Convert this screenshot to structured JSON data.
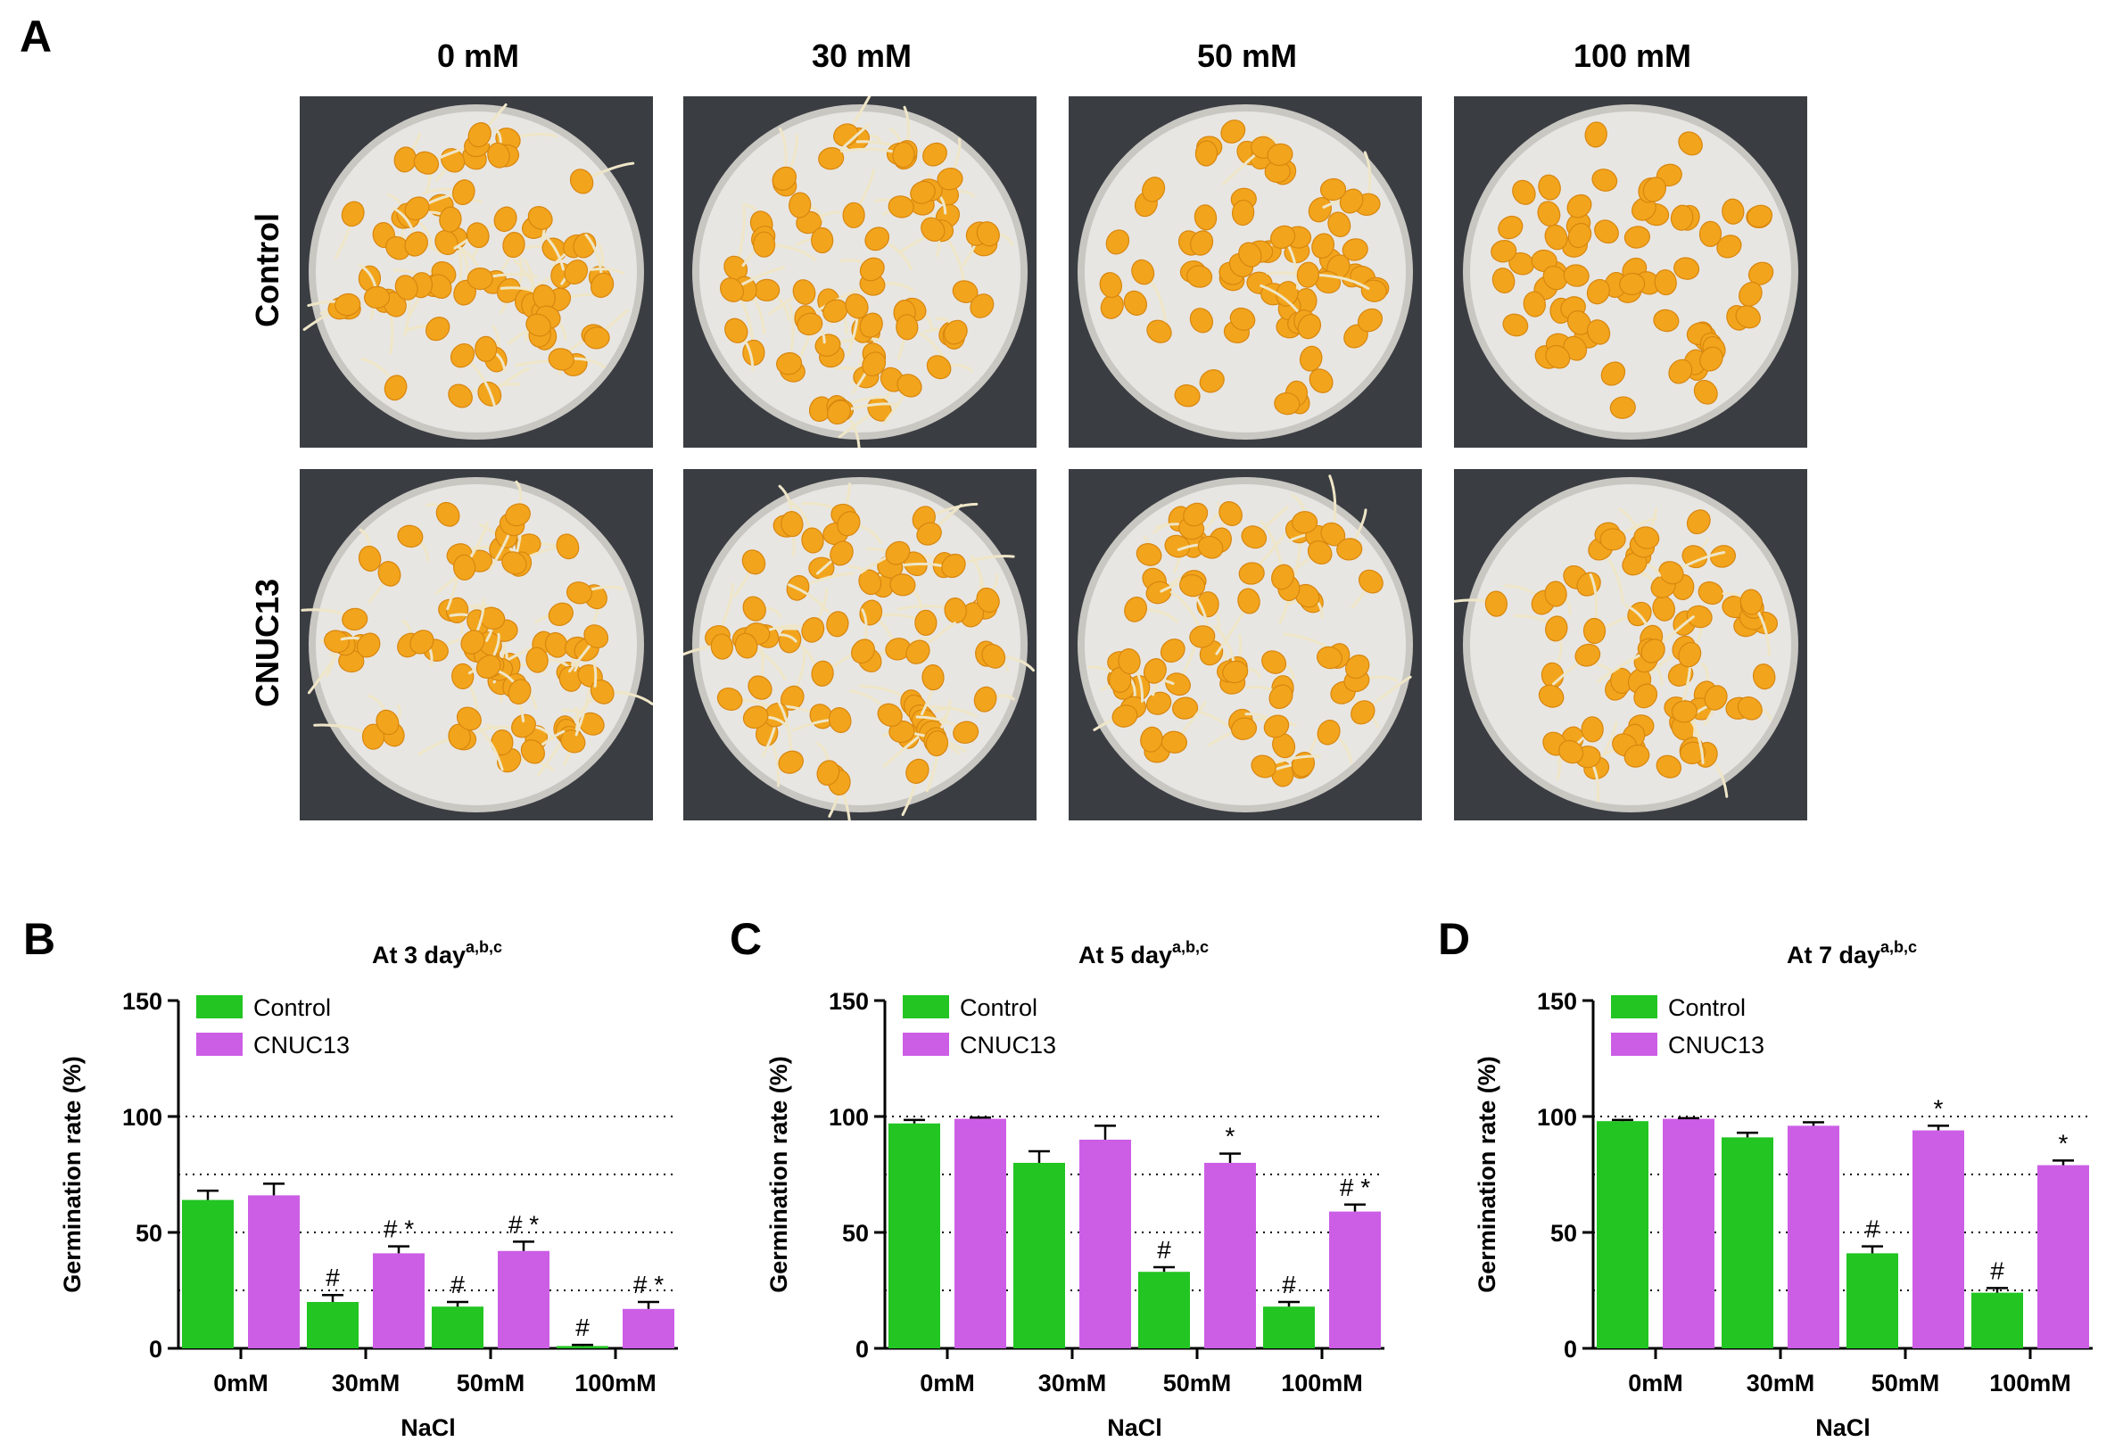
{
  "panel_a": {
    "letter": "A",
    "columns": [
      "0 mM",
      "30 mM",
      "50 mM",
      "100 mM"
    ],
    "rows": [
      "Control",
      "CNUC13"
    ]
  },
  "colors": {
    "control": "#22c522",
    "cnuc13": "#cc5ee6",
    "plate_bg": "#3a3d42",
    "dish": "#e8e6e2",
    "seed": "#f2a51c",
    "sprout": "#efe6c8"
  },
  "chart_data": [
    {
      "letter": "B",
      "type": "bar",
      "title": "At 3 day",
      "title_sup": "a,b,c",
      "xlabel": "NaCl",
      "ylabel": "Germination rate (%)",
      "ylim": [
        0,
        150
      ],
      "yticks": [
        0,
        50,
        100,
        150
      ],
      "gridlines": [
        25,
        50,
        75,
        100
      ],
      "categories": [
        "0mM",
        "30mM",
        "50mM",
        "100mM"
      ],
      "legend_position": "top-left",
      "series": [
        {
          "name": "Control",
          "values": [
            64,
            20,
            18,
            1
          ],
          "errors": [
            4,
            3,
            2,
            0.5
          ],
          "marks": [
            "",
            "#",
            "#",
            "#"
          ]
        },
        {
          "name": "CNUC13",
          "values": [
            66,
            41,
            42,
            17
          ],
          "errors": [
            5,
            3,
            4,
            3
          ],
          "marks": [
            "",
            "# *",
            "# *",
            "# *"
          ]
        }
      ]
    },
    {
      "letter": "C",
      "type": "bar",
      "title": "At 5 day",
      "title_sup": "a,b,c",
      "xlabel": "NaCl",
      "ylabel": "Germination rate (%)",
      "ylim": [
        0,
        150
      ],
      "yticks": [
        0,
        50,
        100,
        150
      ],
      "gridlines": [
        25,
        50,
        75,
        100
      ],
      "categories": [
        "0mM",
        "30mM",
        "50mM",
        "100mM"
      ],
      "legend_position": "top-left",
      "series": [
        {
          "name": "Control",
          "values": [
            97,
            80,
            33,
            18
          ],
          "errors": [
            1.5,
            5,
            2,
            2
          ],
          "marks": [
            "",
            "",
            "#",
            "#"
          ]
        },
        {
          "name": "CNUC13",
          "values": [
            99,
            90,
            80,
            59
          ],
          "errors": [
            0.5,
            6,
            4,
            3
          ],
          "marks": [
            "",
            "",
            "*",
            "# *"
          ]
        }
      ]
    },
    {
      "letter": "D",
      "type": "bar",
      "title": "At 7 day",
      "title_sup": "a,b,c",
      "xlabel": "NaCl",
      "ylabel": "Germination rate (%)",
      "ylim": [
        0,
        150
      ],
      "yticks": [
        0,
        50,
        100,
        150
      ],
      "gridlines": [
        25,
        50,
        75,
        100
      ],
      "categories": [
        "0mM",
        "30mM",
        "50mM",
        "100mM"
      ],
      "legend_position": "top-left",
      "series": [
        {
          "name": "Control",
          "values": [
            98,
            91,
            41,
            24
          ],
          "errors": [
            0.5,
            2,
            3,
            2
          ],
          "marks": [
            "",
            "",
            "#",
            "#"
          ]
        },
        {
          "name": "CNUC13",
          "values": [
            99,
            96,
            94,
            79
          ],
          "errors": [
            0.3,
            1.5,
            2,
            2
          ],
          "marks": [
            "",
            "",
            "*",
            "*"
          ]
        }
      ]
    }
  ]
}
